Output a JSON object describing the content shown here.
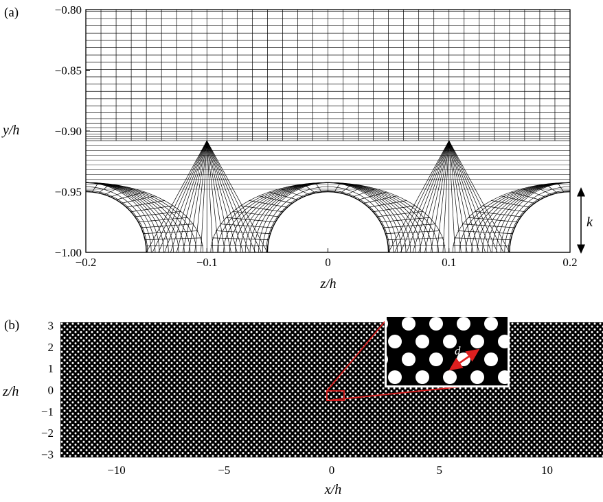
{
  "figure": {
    "panel_a_label": "(a)",
    "panel_b_label": "(b)",
    "k_label": "k",
    "d_label": "d"
  },
  "chart_data": [
    {
      "type": "mesh",
      "panel": "(a)",
      "xlabel": "z/h",
      "ylabel": "y/h",
      "xlim": [
        -0.2,
        0.2
      ],
      "ylim": [
        -1.0,
        -0.8
      ],
      "xticks": [
        -0.2,
        -0.1,
        0,
        0.1,
        0.2
      ],
      "xtick_labels": [
        "−0.2",
        "−0.1",
        "0",
        "0.1",
        "0.2"
      ],
      "yticks": [
        -1.0,
        -0.95,
        -0.9,
        -0.85,
        -0.8
      ],
      "ytick_labels": [
        "−1.00",
        "−0.95",
        "−0.90",
        "−0.85",
        "−0.80"
      ],
      "hemisphere_centers_z": [
        -0.2,
        0.0,
        0.2
      ],
      "hemisphere_radius": 0.05,
      "roughness_height_k": 0.05,
      "grid": true
    },
    {
      "type": "pattern",
      "panel": "(b)",
      "xlabel": "x/h",
      "ylabel": "z/h",
      "xlim": [
        -12.6,
        12.6
      ],
      "ylim": [
        -3.15,
        3.15
      ],
      "xticks": [
        -10,
        -5,
        0,
        5,
        10
      ],
      "xtick_labels": [
        "−10",
        "−5",
        "0",
        "5",
        "10"
      ],
      "yticks": [
        3,
        2,
        1,
        0,
        -1,
        -2,
        -3
      ],
      "ytick_labels": [
        "3",
        "2",
        "1",
        "0",
        "−1",
        "−2",
        "−3"
      ],
      "element_spacing_d": 0.2,
      "inset_label": "d"
    }
  ]
}
